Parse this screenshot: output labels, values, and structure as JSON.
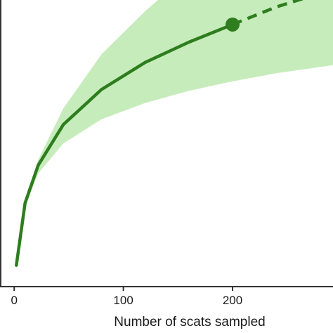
{
  "chart_data": {
    "type": "line",
    "title": "",
    "xlabel": "Number of scats sampled",
    "ylabel": "",
    "xlim": [
      -13,
      292
    ],
    "ylim": [
      0,
      100
    ],
    "xticks": [
      0,
      100,
      200
    ],
    "grid": false,
    "legend": "none",
    "colors": {
      "line": "#2e7d1e",
      "band": "#c7ecbb",
      "axis": "#333333"
    },
    "series": [
      {
        "style": "interpolated",
        "x": [
          2,
          10,
          22,
          45,
          80,
          120,
          160,
          200
        ],
        "y": [
          4,
          27,
          41,
          56,
          69,
          79,
          86.5,
          93
        ]
      },
      {
        "style": "observed",
        "x": [
          200
        ],
        "y": [
          93
        ]
      },
      {
        "style": "extrapolated",
        "x": [
          200,
          240,
          292
        ],
        "y": [
          93,
          99.5,
          106
        ]
      }
    ],
    "confidence_band": {
      "x": [
        2,
        10,
        22,
        45,
        80,
        120,
        160,
        200,
        240,
        292
      ],
      "lower": [
        4,
        26,
        38,
        49,
        58,
        64,
        68.5,
        72,
        75,
        78
      ],
      "upper": [
        4,
        28,
        43,
        62,
        82,
        98,
        112,
        125,
        135,
        145
      ]
    }
  }
}
